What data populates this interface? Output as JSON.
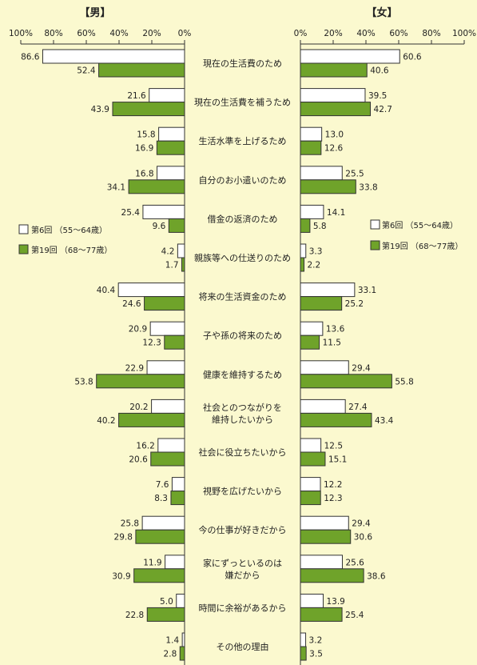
{
  "chart_data": {
    "type": "bar",
    "orientation": "horizontal-butterfly",
    "panels": [
      {
        "key": "male",
        "title": "【男】",
        "direction": "left"
      },
      {
        "key": "female",
        "title": "【女】",
        "direction": "right"
      }
    ],
    "axis_ticks": [
      "100%",
      "80%",
      "60%",
      "40%",
      "20%",
      "0%"
    ],
    "axis_ticks_right": [
      "0%",
      "20%",
      "40%",
      "60%",
      "80%",
      "100%"
    ],
    "xlim": [
      0,
      100
    ],
    "grid": false,
    "categories": [
      [
        "現在の生活費のため"
      ],
      [
        "現在の生活費を補うため"
      ],
      [
        "生活水準を上げるため"
      ],
      [
        "自分のお小遣いのため"
      ],
      [
        "借金の返済のため"
      ],
      [
        "親族等への仕送りのため"
      ],
      [
        "将来の生活資金のため"
      ],
      [
        "子や孫の将来のため"
      ],
      [
        "健康を維持するため"
      ],
      [
        "社会とのつながりを",
        "維持したいから"
      ],
      [
        "社会に役立ちたいから"
      ],
      [
        "視野を広げたいから"
      ],
      [
        "今の仕事が好きだから"
      ],
      [
        "家にずっといるのは",
        "嫌だから"
      ],
      [
        "時間に余裕があるから"
      ],
      [
        "その他の理由"
      ]
    ],
    "series": [
      {
        "name": "第6回 （55～64歳）",
        "color": "#ffffff",
        "male": [
          86.6,
          21.6,
          15.8,
          16.8,
          25.4,
          4.2,
          40.4,
          20.9,
          22.9,
          20.2,
          16.2,
          7.6,
          25.8,
          11.9,
          5.0,
          1.4
        ],
        "female": [
          60.6,
          39.5,
          13.0,
          25.5,
          14.1,
          3.3,
          33.1,
          13.6,
          29.4,
          27.4,
          12.5,
          12.2,
          29.4,
          25.6,
          13.9,
          3.2
        ],
        "labels_male": [
          "86.6",
          "21.6",
          "15.8",
          "16.8",
          "25.4",
          "4.2",
          "40.4",
          "20.9",
          "22.9",
          "20.2",
          "16.2",
          "7.6",
          "25.8",
          "11.9",
          "5.0",
          "1.4"
        ],
        "labels_female": [
          "60.6",
          "39.5",
          "13.0",
          "25.5",
          "14.1",
          "3.3",
          "33.1",
          "13.6",
          "29.4",
          "27.4",
          "12.5",
          "12.2",
          "29.4",
          "25.6",
          "13.9",
          "3.2"
        ]
      },
      {
        "name": "第19回 （68～77歳）",
        "color": "#6fa32a",
        "male": [
          52.4,
          43.9,
          16.9,
          34.1,
          9.6,
          1.7,
          24.6,
          12.3,
          53.8,
          40.2,
          20.6,
          8.3,
          29.8,
          30.9,
          22.8,
          2.8
        ],
        "female": [
          40.6,
          42.7,
          12.6,
          33.8,
          5.8,
          2.2,
          25.2,
          11.5,
          55.8,
          43.4,
          15.1,
          12.3,
          30.6,
          38.6,
          25.4,
          3.5
        ],
        "labels_male": [
          "52.4",
          "43.9",
          "16.9",
          "34.1",
          "9.6",
          "1.7",
          "24.6",
          "12.3",
          "53.8",
          "40.2",
          "20.6",
          "8.3",
          "29.8",
          "30.9",
          "22.8",
          "2.8"
        ],
        "labels_female": [
          "40.6",
          "42.7",
          "12.6",
          "33.8",
          "5.8",
          "2.2",
          "25.2",
          "11.5",
          "55.8",
          "43.4",
          "15.1",
          "12.3",
          "30.6",
          "38.6",
          "25.4",
          "3.5"
        ]
      }
    ],
    "legend": {
      "placement": "both-sides-middle",
      "items": [
        "第6回 （55～64歳）",
        "第19回 （68～77歳）"
      ]
    }
  }
}
